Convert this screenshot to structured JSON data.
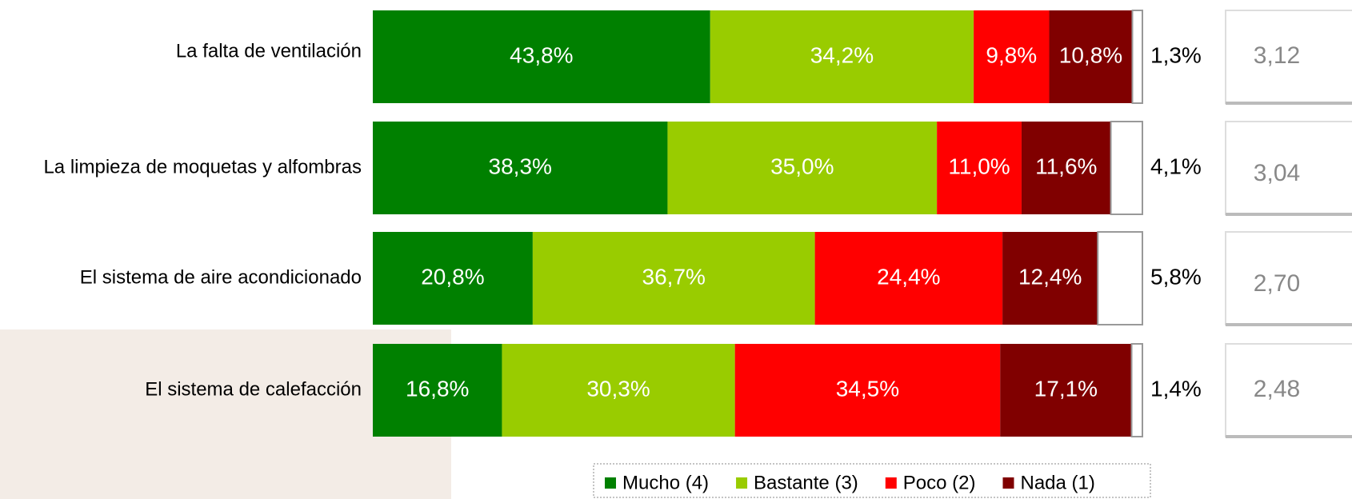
{
  "chart_data": {
    "type": "stacked-bar-horizontal",
    "categories": [
      "La falta de ventilación",
      "La limpieza de moquetas y alfombras",
      "El sistema de aire acondicionado",
      "El sistema de calefacción"
    ],
    "series": [
      {
        "name": "Mucho (4)",
        "color": "#008000",
        "values": [
          43.8,
          38.3,
          20.8,
          16.8
        ],
        "value_labels": [
          "43,8%",
          "38,3%",
          "20,8%",
          "16,8%"
        ]
      },
      {
        "name": "Bastante (3)",
        "color": "#99cc00",
        "values": [
          34.2,
          35.0,
          36.7,
          30.3
        ],
        "value_labels": [
          "34,2%",
          "35,0%",
          "36,7%",
          "30,3%"
        ]
      },
      {
        "name": "Poco (2)",
        "color": "#ff0000",
        "values": [
          9.8,
          11.0,
          24.4,
          34.5
        ],
        "value_labels": [
          "9,8%",
          "11,0%",
          "24,4%",
          "34,5%"
        ]
      },
      {
        "name": "Nada (1)",
        "color": "#800000",
        "values": [
          10.8,
          11.6,
          12.4,
          17.1
        ],
        "value_labels": [
          "10,8%",
          "11,6%",
          "12,4%",
          "17,1%"
        ]
      },
      {
        "color": "#ffffff",
        "values": [
          1.3,
          4.1,
          5.8,
          1.4
        ],
        "value_labels": [
          "1,3%",
          "4,1%",
          "5,8%",
          "1,4%"
        ]
      }
    ],
    "scores": {
      "values": [
        3.12,
        3.04,
        2.7,
        2.48
      ],
      "value_labels": [
        "3,12",
        "3,04",
        "2,70",
        "2,48"
      ]
    }
  }
}
